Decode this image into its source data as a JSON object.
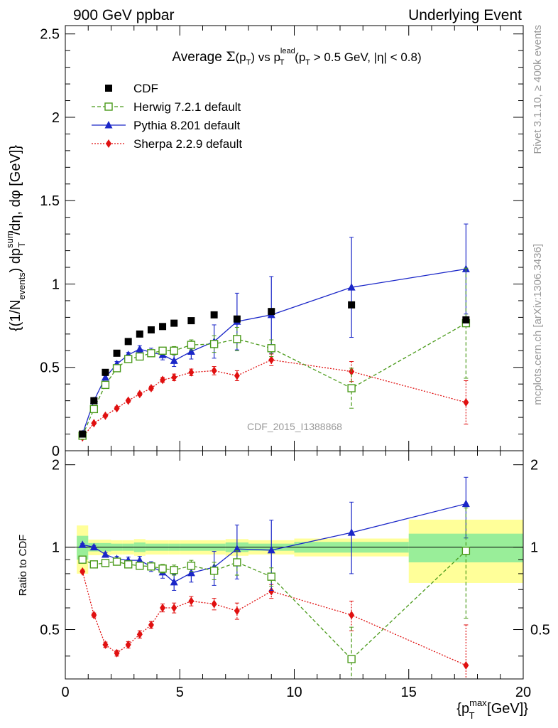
{
  "header": {
    "left": "900 GeV ppbar",
    "right": "Underlying Event"
  },
  "side_labels": {
    "rivet": "Rivet 3.1.10, ≥ 400k events",
    "mcplots": "mcplots.cern.ch [arXiv:1306.3436]"
  },
  "watermark": "CDF_2015_I1388868",
  "chart_data": [
    {
      "type": "line",
      "title_parts": {
        "a": "Average ",
        "sigma": "Σ",
        "b": "(p",
        "sub_t1": "T",
        "c": ") vs p",
        "sup_lead": "lead",
        "sub_t2": "T",
        "d": " (p",
        "sub_t3": "T",
        "e": " > 0.5 GeV, |η| < 0.8)"
      },
      "ylabel_parts": {
        "a": "{(1/N",
        "sub_events": "events",
        "b": ") dp",
        "sup_sum": "sum",
        "sub_t": "T",
        "c": "/dη, dφ [GeV]}"
      },
      "xlim": [
        0,
        20
      ],
      "ylim": [
        0,
        2.55
      ],
      "yticks": [
        0,
        0.5,
        1,
        1.5,
        2,
        2.5
      ],
      "ytick_labels": [
        "0",
        "0.5",
        "1",
        "1.5",
        "2",
        "2.5"
      ],
      "legend_position": "top-left",
      "series": [
        {
          "name": "CDF",
          "color": "#000000",
          "marker": "square",
          "x": [
            0.75,
            1.25,
            1.75,
            2.25,
            2.75,
            3.25,
            3.75,
            4.25,
            4.75,
            5.5,
            6.5,
            7.5,
            9.0,
            12.5,
            17.5
          ],
          "y": [
            0.1,
            0.3,
            0.47,
            0.585,
            0.655,
            0.7,
            0.725,
            0.745,
            0.765,
            0.78,
            0.815,
            0.79,
            0.835,
            0.875,
            0.785
          ],
          "err": [
            0,
            0,
            0,
            0,
            0,
            0,
            0,
            0,
            0,
            0,
            0,
            0,
            0,
            0,
            0
          ]
        },
        {
          "name": "Herwig 7.2.1 default",
          "color": "#4a9a1a",
          "marker": "open-square",
          "dash": "dashed",
          "x": [
            0.75,
            1.25,
            1.75,
            2.25,
            2.75,
            3.25,
            3.75,
            4.25,
            4.75,
            5.5,
            6.5,
            7.5,
            9.0,
            12.5,
            17.5
          ],
          "y": [
            0.09,
            0.25,
            0.395,
            0.495,
            0.55,
            0.565,
            0.585,
            0.6,
            0.6,
            0.635,
            0.64,
            0.67,
            0.615,
            0.375,
            0.765
          ],
          "err": [
            0.005,
            0.01,
            0.01,
            0.015,
            0.015,
            0.015,
            0.02,
            0.02,
            0.025,
            0.03,
            0.05,
            0.07,
            0.05,
            0.12,
            0.33
          ]
        },
        {
          "name": "Pythia 8.201 default",
          "color": "#1a26c8",
          "marker": "triangle",
          "dash": "solid",
          "x": [
            0.75,
            1.25,
            1.75,
            2.25,
            2.75,
            3.25,
            3.75,
            4.25,
            4.75,
            5.5,
            6.5,
            7.5,
            9.0,
            12.5,
            17.5
          ],
          "y": [
            0.1,
            0.3,
            0.44,
            0.52,
            0.575,
            0.61,
            0.59,
            0.575,
            0.54,
            0.595,
            0.655,
            0.775,
            0.815,
            0.98,
            1.09
          ],
          "err": [
            0.005,
            0.01,
            0.01,
            0.015,
            0.015,
            0.02,
            0.025,
            0.03,
            0.035,
            0.045,
            0.1,
            0.17,
            0.23,
            0.3,
            0.27
          ]
        },
        {
          "name": "Sherpa 2.2.9 default",
          "color": "#e01010",
          "marker": "diamond",
          "dash": "dotted",
          "x": [
            0.75,
            1.25,
            1.75,
            2.25,
            2.75,
            3.25,
            3.75,
            4.25,
            4.75,
            5.5,
            6.5,
            7.5,
            9.0,
            12.5,
            17.5
          ],
          "y": [
            0.08,
            0.165,
            0.21,
            0.255,
            0.3,
            0.34,
            0.375,
            0.425,
            0.44,
            0.47,
            0.48,
            0.45,
            0.545,
            0.475,
            0.29
          ],
          "err": [
            0.005,
            0.005,
            0.008,
            0.01,
            0.01,
            0.01,
            0.012,
            0.015,
            0.02,
            0.02,
            0.025,
            0.03,
            0.035,
            0.06,
            0.13
          ]
        }
      ]
    },
    {
      "type": "line",
      "ylabel": "Ratio to CDF",
      "xlabel_parts": {
        "a": "{p",
        "sup_max": "max",
        "sub_t": "T",
        "b": " [GeV]}"
      },
      "xlim": [
        0,
        20
      ],
      "ylim": [
        0.33,
        2.25
      ],
      "log_y": true,
      "xticks": [
        0,
        5,
        10,
        15,
        20
      ],
      "xtick_labels": [
        "0",
        "5",
        "10",
        "15",
        "20"
      ],
      "yticks": [
        0.5,
        1,
        2
      ],
      "ytick_labels": [
        "0.5",
        "1",
        "2"
      ],
      "reference_bands": {
        "bins": [
          [
            0.5,
            1.0
          ],
          [
            1.0,
            1.5
          ],
          [
            1.5,
            2.0
          ],
          [
            2.0,
            2.5
          ],
          [
            2.5,
            3.0
          ],
          [
            3.0,
            3.5
          ],
          [
            3.5,
            4.0
          ],
          [
            4.0,
            4.5
          ],
          [
            4.5,
            5.0
          ],
          [
            5.0,
            6.0
          ],
          [
            6.0,
            7.0
          ],
          [
            7.0,
            8.0
          ],
          [
            8.0,
            10.0
          ],
          [
            10.0,
            15.0
          ],
          [
            15.0,
            20.0
          ]
        ],
        "stat_sys": [
          0.2,
          0.065,
          0.065,
          0.06,
          0.06,
          0.07,
          0.06,
          0.06,
          0.06,
          0.06,
          0.06,
          0.07,
          0.06,
          0.075,
          0.26
        ],
        "stat": [
          0.1,
          0.035,
          0.035,
          0.03,
          0.03,
          0.04,
          0.03,
          0.03,
          0.03,
          0.03,
          0.03,
          0.04,
          0.03,
          0.045,
          0.12
        ],
        "band_colors": {
          "outer": "#ffff99",
          "inner": "#99ee99"
        }
      },
      "series": [
        {
          "name": "Herwig 7.2.1 default",
          "color": "#4a9a1a",
          "marker": "open-square",
          "dash": "dashed",
          "x": [
            0.75,
            1.25,
            1.75,
            2.25,
            2.75,
            3.25,
            3.75,
            4.25,
            4.75,
            5.5,
            6.5,
            7.5,
            9.0,
            12.5,
            17.5
          ],
          "y": [
            0.9,
            0.865,
            0.875,
            0.885,
            0.865,
            0.855,
            0.85,
            0.835,
            0.825,
            0.855,
            0.82,
            0.88,
            0.78,
            0.39,
            0.97
          ],
          "err": [
            0.01,
            0.01,
            0.01,
            0.015,
            0.015,
            0.02,
            0.025,
            0.03,
            0.035,
            0.04,
            0.06,
            0.09,
            0.06,
            0.12,
            0.42
          ]
        },
        {
          "name": "Pythia 8.201 default",
          "color": "#1a26c8",
          "marker": "triangle",
          "dash": "solid",
          "x": [
            0.75,
            1.25,
            1.75,
            2.25,
            2.75,
            3.25,
            3.75,
            4.25,
            4.75,
            5.5,
            6.5,
            7.5,
            9.0,
            12.5,
            17.5
          ],
          "y": [
            1.02,
            1.0,
            0.94,
            0.905,
            0.895,
            0.895,
            0.85,
            0.81,
            0.745,
            0.805,
            0.845,
            0.985,
            0.975,
            1.13,
            1.44
          ],
          "err": [
            0.01,
            0.015,
            0.015,
            0.02,
            0.025,
            0.03,
            0.035,
            0.04,
            0.05,
            0.06,
            0.12,
            0.22,
            0.28,
            0.33,
            0.36
          ]
        },
        {
          "name": "Sherpa 2.2.9 default",
          "color": "#e01010",
          "marker": "diamond",
          "dash": "dotted",
          "x": [
            0.75,
            1.25,
            1.75,
            2.25,
            2.75,
            3.25,
            3.75,
            4.25,
            4.75,
            5.5,
            6.5,
            7.5,
            9.0,
            12.5,
            17.5
          ],
          "y": [
            0.815,
            0.565,
            0.44,
            0.41,
            0.44,
            0.48,
            0.52,
            0.6,
            0.6,
            0.635,
            0.62,
            0.585,
            0.69,
            0.565,
            0.37
          ],
          "err": [
            0.01,
            0.01,
            0.01,
            0.01,
            0.012,
            0.015,
            0.015,
            0.02,
            0.025,
            0.025,
            0.03,
            0.04,
            0.04,
            0.07,
            0.15
          ]
        }
      ]
    }
  ]
}
